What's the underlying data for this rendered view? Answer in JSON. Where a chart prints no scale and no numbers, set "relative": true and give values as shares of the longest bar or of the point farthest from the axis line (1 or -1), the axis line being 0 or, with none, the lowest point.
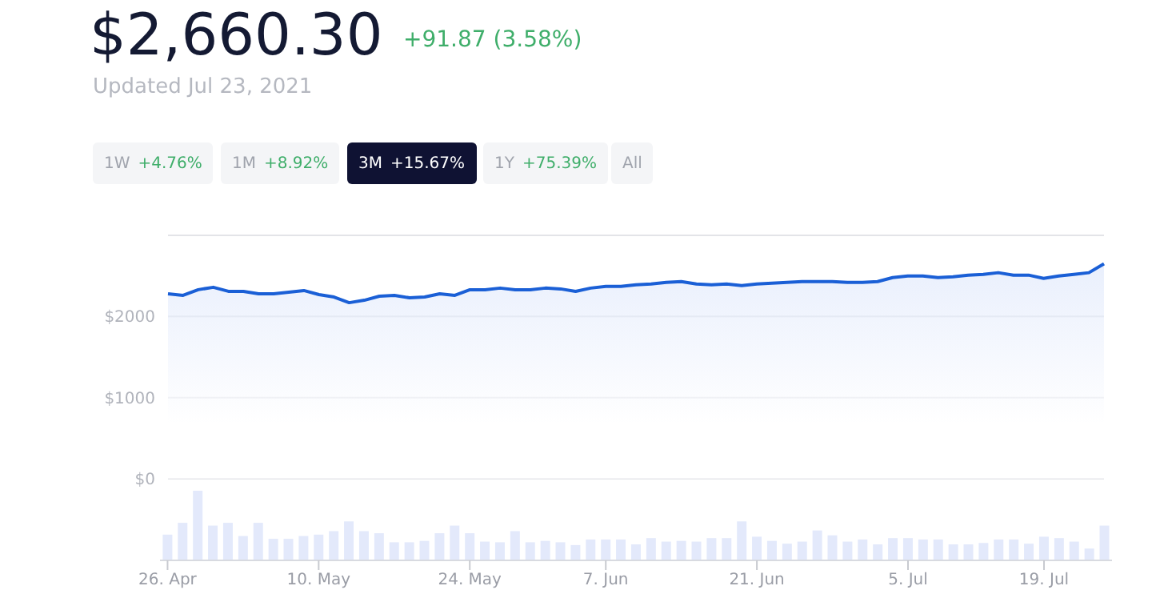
{
  "chart_data": [
    {
      "type": "area",
      "title": "$2,660.30",
      "subtitle": "+91.87 (3.58%)",
      "annotations": [
        "Updated Jul 23, 2021",
        "1W",
        "+4.76%",
        "1M",
        "+8.92%",
        "3M",
        "+15.67%",
        "1Y",
        "+75.39%",
        "All"
      ],
      "categories": [
        null,
        null,
        null,
        null,
        null,
        null,
        null,
        null,
        null,
        null,
        null,
        null,
        null,
        null,
        null,
        null,
        null,
        null,
        null,
        null,
        null,
        null,
        null,
        null,
        null,
        null,
        null,
        null,
        null,
        null,
        null,
        null,
        null,
        null,
        null,
        null,
        null,
        null,
        null,
        null,
        null,
        null,
        null,
        null,
        null,
        null,
        null,
        null,
        null,
        null,
        null,
        null,
        null,
        null,
        null,
        null,
        null,
        null,
        null,
        null,
        null,
        null,
        null
      ],
      "series": [
        {
          "color": "#1a5fd6",
          "values": [
            2280,
            2260,
            2330,
            2360,
            2310,
            2310,
            2280,
            2280,
            2300,
            2320,
            2270,
            2240,
            2170,
            2200,
            2250,
            2260,
            2230,
            2240,
            2280,
            2260,
            2330,
            2330,
            2350,
            2330,
            2330,
            2350,
            2340,
            2310,
            2350,
            2370,
            2370,
            2390,
            2400,
            2420,
            2430,
            2400,
            2390,
            2400,
            2380,
            2400,
            2410,
            2420,
            2430,
            2430,
            2430,
            2420,
            2420,
            2430,
            2480,
            2500,
            2500,
            2480,
            2490,
            2510,
            2520,
            2540,
            2510,
            2510,
            2470,
            2500,
            2520,
            2540,
            2650
          ]
        }
      ],
      "ylim": [
        0,
        3000
      ],
      "yticks": [
        {
          "value": 0,
          "label": "$0"
        },
        {
          "value": 1000,
          "label": "$1000"
        },
        {
          "value": 2000,
          "label": "$2000"
        },
        {
          "value": 3000,
          "label": null
        }
      ],
      "grid": "y",
      "tick_labels": "y"
    },
    {
      "type": "bar",
      "relative": true,
      "tick_labels": "x",
      "categories": [
        "26. Apr",
        null,
        null,
        null,
        null,
        null,
        null,
        null,
        null,
        null,
        "10. May",
        null,
        null,
        null,
        null,
        null,
        null,
        null,
        null,
        null,
        "24. May",
        null,
        null,
        null,
        null,
        null,
        null,
        null,
        null,
        "7. Jun",
        null,
        null,
        null,
        null,
        null,
        null,
        null,
        null,
        null,
        "21. Jun",
        null,
        null,
        null,
        null,
        null,
        null,
        null,
        null,
        null,
        "5. Jul",
        null,
        null,
        null,
        null,
        null,
        null,
        null,
        null,
        "19. Jul",
        null,
        null,
        null,
        null
      ],
      "series": [
        {
          "color": "#e3e9fb",
          "values": [
            0.37,
            0.54,
            1,
            0.5,
            0.54,
            0.35,
            0.54,
            0.31,
            0.31,
            0.35,
            0.37,
            0.42,
            0.56,
            0.42,
            0.39,
            0.26,
            0.26,
            0.28,
            0.39,
            0.5,
            0.39,
            0.27,
            0.26,
            0.42,
            0.26,
            0.28,
            0.26,
            0.22,
            0.3,
            0.3,
            0.3,
            0.23,
            0.32,
            0.27,
            0.28,
            0.27,
            0.32,
            0.32,
            0.56,
            0.34,
            0.28,
            0.24,
            0.27,
            0.43,
            0.36,
            0.27,
            0.3,
            0.23,
            0.32,
            0.32,
            0.3,
            0.3,
            0.23,
            0.23,
            0.25,
            0.3,
            0.3,
            0.24,
            0.34,
            0.32,
            0.27,
            0.17,
            0.5
          ]
        }
      ],
      "grid": false
    }
  ]
}
